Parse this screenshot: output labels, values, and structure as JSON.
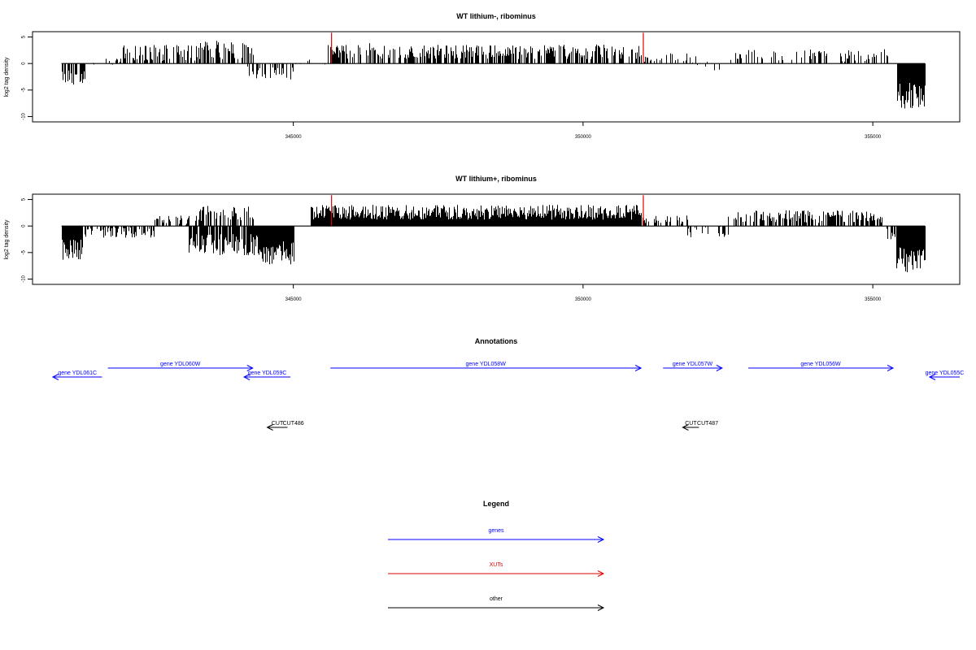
{
  "chart_data": [
    {
      "type": "bar",
      "title": "WT lithium-, ribominus",
      "ylabel": "log2 tag density",
      "xlim": [
        340500,
        356500
      ],
      "ylim": [
        -11,
        6
      ],
      "yticks": [
        5,
        0,
        -5,
        -10
      ],
      "ytick_labels": [
        "5",
        "0",
        "-5",
        "-10"
      ],
      "xticks": [
        345000,
        350000,
        355000
      ],
      "xtick_labels": [
        "345000",
        "350000",
        "355000"
      ],
      "grid": false,
      "bar_color": "#000000",
      "highlight_color": "#e00000",
      "highlight_bars": [
        {
          "x": 345660,
          "value": 5.8
        },
        {
          "x": 351040,
          "value": 5.8
        }
      ],
      "segments": [
        {
          "start": 341000,
          "end": 341400,
          "mean": -2.5,
          "spread": 1.5,
          "density": 0.5
        },
        {
          "start": 341400,
          "end": 342000,
          "mean": 0.3,
          "spread": 0.6,
          "density": 0.2
        },
        {
          "start": 342000,
          "end": 343300,
          "mean": 2.0,
          "spread": 1.5,
          "density": 0.55
        },
        {
          "start": 343300,
          "end": 344300,
          "mean": 2.6,
          "spread": 1.8,
          "density": 0.6
        },
        {
          "start": 344200,
          "end": 345000,
          "mean": -1.8,
          "spread": 1.3,
          "density": 0.45
        },
        {
          "start": 345000,
          "end": 345600,
          "mean": 0.3,
          "spread": 0.5,
          "density": 0.1
        },
        {
          "start": 345600,
          "end": 346500,
          "mean": 2.4,
          "spread": 1.5,
          "density": 0.6
        },
        {
          "start": 346500,
          "end": 351000,
          "mean": 2.2,
          "spread": 1.4,
          "density": 0.65
        },
        {
          "start": 351000,
          "end": 352000,
          "mean": 1.0,
          "spread": 1.0,
          "density": 0.2
        },
        {
          "start": 351800,
          "end": 352500,
          "mean": -0.6,
          "spread": 1.0,
          "density": 0.1
        },
        {
          "start": 352500,
          "end": 355300,
          "mean": 1.5,
          "spread": 1.2,
          "density": 0.3
        },
        {
          "start": 355420,
          "end": 355890,
          "mean": -6.0,
          "spread": 2.5,
          "density": 1.0
        }
      ]
    },
    {
      "type": "bar",
      "title": "WT lithium+, ribominus",
      "ylabel": "log2 tag density",
      "xlim": [
        340500,
        356500
      ],
      "ylim": [
        -11,
        6
      ],
      "yticks": [
        5,
        0,
        -5,
        -10
      ],
      "ytick_labels": [
        "5",
        "0",
        "-5",
        "-10"
      ],
      "xticks": [
        345000,
        350000,
        355000
      ],
      "xtick_labels": [
        "345000",
        "350000",
        "355000"
      ],
      "grid": false,
      "bar_color": "#000000",
      "highlight_color": "#e00000",
      "highlight_bars": [
        {
          "x": 345660,
          "value": 5.8
        },
        {
          "x": 351040,
          "value": 5.8
        }
      ],
      "segments": [
        {
          "start": 341000,
          "end": 341350,
          "mean": -4.5,
          "spread": 2.0,
          "density": 1.0
        },
        {
          "start": 341350,
          "end": 342600,
          "mean": -1.2,
          "spread": 1.0,
          "density": 0.55
        },
        {
          "start": 342600,
          "end": 343200,
          "mean": 1.0,
          "spread": 1.0,
          "density": 0.5
        },
        {
          "start": 343200,
          "end": 344400,
          "mean": -3.5,
          "spread": 2.0,
          "density": 0.8
        },
        {
          "start": 343300,
          "end": 344300,
          "mean": 2.4,
          "spread": 1.5,
          "density": 0.5
        },
        {
          "start": 344400,
          "end": 345000,
          "mean": -5.0,
          "spread": 2.3,
          "density": 1.0
        },
        {
          "start": 345300,
          "end": 351000,
          "mean": 2.6,
          "spread": 1.4,
          "density": 1.0
        },
        {
          "start": 351000,
          "end": 351800,
          "mean": 1.2,
          "spread": 1.0,
          "density": 0.4
        },
        {
          "start": 351800,
          "end": 352500,
          "mean": -1.2,
          "spread": 1.2,
          "density": 0.35
        },
        {
          "start": 352500,
          "end": 355200,
          "mean": 1.8,
          "spread": 1.2,
          "density": 0.6
        },
        {
          "start": 355200,
          "end": 355400,
          "mean": -1.5,
          "spread": 1.0,
          "density": 0.6
        },
        {
          "start": 355400,
          "end": 355890,
          "mean": -6.5,
          "spread": 2.5,
          "density": 1.0
        }
      ]
    }
  ],
  "annotations": {
    "title": "Annotations",
    "genes": [
      {
        "label": "gene YDL061C",
        "start": 340850,
        "end": 341700,
        "strand": "-",
        "row": 1,
        "color": "#0000ff"
      },
      {
        "label": "gene YDL060W",
        "start": 341800,
        "end": 344300,
        "strand": "+",
        "row": 0,
        "color": "#0000ff"
      },
      {
        "label": "gene YDL059C",
        "start": 344150,
        "end": 344950,
        "strand": "-",
        "row": 1,
        "color": "#0000ff"
      },
      {
        "label": "gene YDL058W",
        "start": 345640,
        "end": 351000,
        "strand": "+",
        "row": 0,
        "color": "#0000ff"
      },
      {
        "label": "gene YDL057W",
        "start": 351380,
        "end": 352400,
        "strand": "+",
        "row": 0,
        "color": "#0000ff"
      },
      {
        "label": "gene YDL056W",
        "start": 352850,
        "end": 355350,
        "strand": "+",
        "row": 0,
        "color": "#0000ff"
      },
      {
        "label": "gene YDL055C",
        "start": 355980,
        "end": 356500,
        "strand": "-",
        "row": 1,
        "color": "#0000ff"
      }
    ],
    "other": [
      {
        "label": "CUT",
        "start": 344550,
        "end": 344900,
        "strand": "-",
        "row": 2,
        "color": "#000000"
      },
      {
        "label": "CUT486",
        "start": 344850,
        "end": 345150,
        "strand": "",
        "row": 2,
        "color": "#000000"
      },
      {
        "label": "CUT",
        "start": 351720,
        "end": 352000,
        "strand": "-",
        "row": 2,
        "color": "#000000"
      },
      {
        "label": "CUT487",
        "start": 352000,
        "end": 352300,
        "strand": "",
        "row": 2,
        "color": "#000000"
      }
    ]
  },
  "legend": {
    "title": "Legend",
    "items": [
      {
        "label": "genes",
        "color": "#0000ff"
      },
      {
        "label": "XUTs",
        "color": "#e00000"
      },
      {
        "label": "other",
        "color": "#000000"
      }
    ]
  }
}
